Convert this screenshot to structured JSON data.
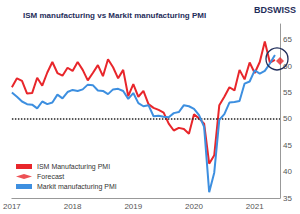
{
  "chart_data": {
    "type": "line",
    "title": "ISM manufacturing vs Markit manufacturing PMI",
    "logo": "BDSWISS",
    "categories": [
      "2017",
      null,
      null,
      null,
      null,
      null,
      null,
      null,
      null,
      null,
      null,
      null,
      "2018",
      null,
      null,
      null,
      null,
      null,
      null,
      null,
      null,
      null,
      null,
      null,
      "2019",
      null,
      null,
      null,
      null,
      null,
      null,
      null,
      null,
      null,
      null,
      null,
      "2020",
      null,
      null,
      null,
      null,
      null,
      null,
      null,
      null,
      null,
      null,
      null,
      "2021",
      null,
      null,
      null,
      null,
      null
    ],
    "series": [
      {
        "name": "ISM Manufacturing PMI",
        "color": "#e8262b",
        "type": "line",
        "marker": "none",
        "line_style": "solid",
        "values": [
          56.0,
          57.7,
          57.2,
          54.8,
          54.9,
          57.8,
          56.3,
          58.8,
          60.8,
          58.7,
          58.2,
          59.7,
          59.1,
          60.8,
          59.3,
          57.3,
          58.7,
          60.2,
          58.1,
          61.3,
          59.8,
          57.7,
          59.3,
          54.3,
          56.6,
          54.2,
          55.3,
          52.8,
          52.1,
          51.7,
          51.2,
          49.1,
          47.8,
          48.3,
          48.1,
          47.2,
          50.9,
          50.1,
          49.1,
          41.5,
          43.1,
          52.6,
          54.2,
          56.0,
          55.4,
          59.3,
          57.5,
          60.7,
          58.7,
          60.8,
          64.7,
          60.7,
          61.2,
          null
        ]
      },
      {
        "name": "Forecast",
        "color": "#e8262b",
        "type": "scatter",
        "marker": "diamond",
        "values": [
          null,
          null,
          null,
          null,
          null,
          null,
          null,
          null,
          null,
          null,
          null,
          null,
          null,
          null,
          null,
          null,
          null,
          null,
          null,
          null,
          null,
          null,
          null,
          null,
          null,
          null,
          null,
          null,
          null,
          null,
          null,
          null,
          null,
          null,
          null,
          null,
          null,
          null,
          null,
          null,
          null,
          null,
          null,
          null,
          null,
          null,
          null,
          null,
          null,
          null,
          null,
          null,
          null,
          61.0
        ]
      },
      {
        "name": "Markit manufacturing PMI",
        "color": "#3d8fe0",
        "type": "line",
        "marker": "none",
        "line_style": "solid",
        "values": [
          55.0,
          54.2,
          53.3,
          52.8,
          52.7,
          52.0,
          53.3,
          52.8,
          53.1,
          54.6,
          53.9,
          55.1,
          55.5,
          55.3,
          55.6,
          56.5,
          56.4,
          55.4,
          55.3,
          54.7,
          55.6,
          55.7,
          55.3,
          53.8,
          54.9,
          53.0,
          52.4,
          52.6,
          50.5,
          50.6,
          50.4,
          50.3,
          51.1,
          51.3,
          52.6,
          52.4,
          51.9,
          50.7,
          48.5,
          36.1,
          39.8,
          49.8,
          50.9,
          53.1,
          53.2,
          53.4,
          56.7,
          57.1,
          59.2,
          58.6,
          59.1,
          60.5,
          62.1,
          null
        ]
      }
    ],
    "hline": 50,
    "ylim": [
      35,
      68
    ],
    "yticks": [
      35,
      40,
      45,
      50,
      55,
      60,
      65
    ],
    "grid": false,
    "legend": "bottom-left"
  }
}
